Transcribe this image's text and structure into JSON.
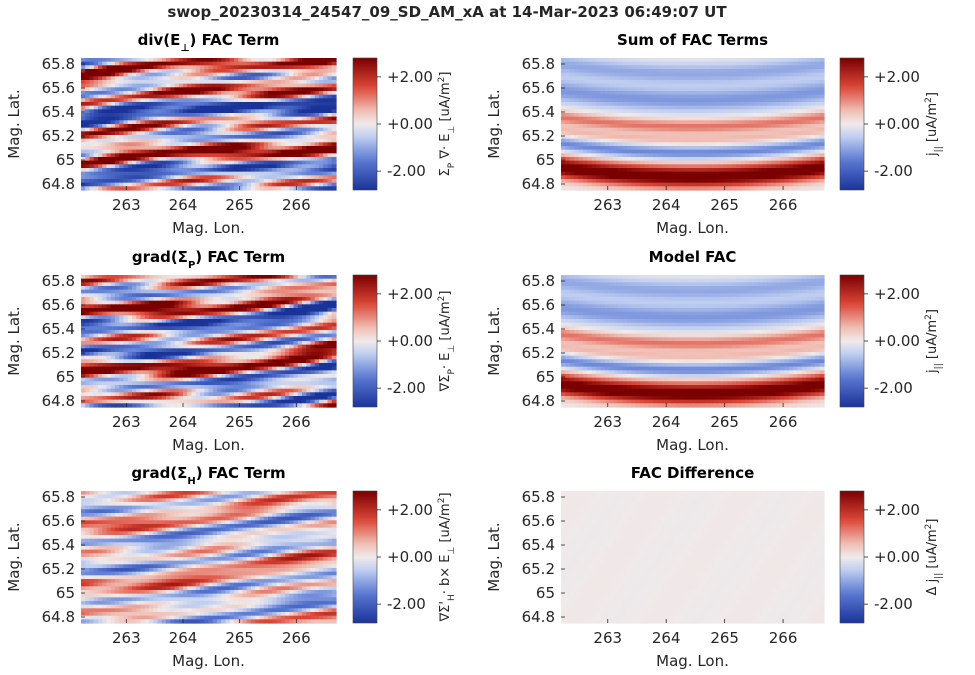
{
  "figure": {
    "title": "swop_20230314_24547_09_SD_AM_xA at 14-Mar-2023 06:49:07 UT"
  },
  "colors": {
    "cmap_low": "#1a3399",
    "cmap_mid": "#f0eaea",
    "cmap_high": "#7a0000"
  },
  "chart_data": [
    {
      "id": "div-e-perp",
      "type": "heatmap",
      "title_main": "div(E",
      "title_sub": "⊥",
      "title_tail": ") FAC Term",
      "xlabel": "Mag. Lon.",
      "ylabel": "Mag. Lat.",
      "cbar_sym": "Σ_P ∇· E_⊥",
      "cbar_units": "[uA/m2]",
      "xlim": [
        262.2,
        266.7
      ],
      "ylim": [
        64.75,
        65.85
      ],
      "xticks": [
        263,
        264,
        265,
        266
      ],
      "xtick_labels": [
        "263",
        "264",
        "265",
        "266"
      ],
      "yticks": [
        65.8,
        65.6,
        65.4,
        65.2,
        65.0,
        64.8
      ],
      "ytick_labels": [
        "65.8",
        "65.6",
        "65.4",
        "65.2",
        "65",
        "64.8"
      ],
      "clim": [
        -2.8,
        2.8
      ],
      "cticks": [
        2,
        0,
        -2
      ],
      "ctick_labels": [
        "+2.00",
        "+0.00",
        "-2.00"
      ],
      "pattern": "stripes-strong"
    },
    {
      "id": "sum-fac",
      "type": "heatmap",
      "title_main": "Sum of FAC Terms",
      "title_sub": "",
      "title_tail": "",
      "xlabel": "Mag. Lon.",
      "ylabel": "Mag. Lat.",
      "cbar_sym": "j_||",
      "cbar_units": "[uA/m2]",
      "xlim": [
        262.2,
        266.7
      ],
      "ylim": [
        64.75,
        65.85
      ],
      "xticks": [
        263,
        264,
        265,
        266
      ],
      "xtick_labels": [
        "263",
        "264",
        "265",
        "266"
      ],
      "yticks": [
        65.8,
        65.6,
        65.4,
        65.2,
        65.0,
        64.8
      ],
      "ytick_labels": [
        "65.8",
        "65.6",
        "65.4",
        "65.2",
        "65",
        "64.8"
      ],
      "clim": [
        -2.8,
        2.8
      ],
      "cticks": [
        2,
        0,
        -2
      ],
      "ctick_labels": [
        "+2.00",
        "+0.00",
        "-2.00"
      ],
      "pattern": "smooth-bands"
    },
    {
      "id": "grad-sigma-p",
      "type": "heatmap",
      "title_main": "grad(Σ",
      "title_sub": "P",
      "title_tail": ") FAC Term",
      "xlabel": "Mag. Lon.",
      "ylabel": "Mag. Lat.",
      "cbar_sym": "∇Σ_P· E_⊥",
      "cbar_units": "[uA/m2]",
      "xlim": [
        262.2,
        266.7
      ],
      "ylim": [
        64.75,
        65.85
      ],
      "xticks": [
        263,
        264,
        265,
        266
      ],
      "xtick_labels": [
        "263",
        "264",
        "265",
        "266"
      ],
      "yticks": [
        65.8,
        65.6,
        65.4,
        65.2,
        65.0,
        64.8
      ],
      "ytick_labels": [
        "65.8",
        "65.6",
        "65.4",
        "65.2",
        "65",
        "64.8"
      ],
      "clim": [
        -2.8,
        2.8
      ],
      "cticks": [
        2,
        0,
        -2
      ],
      "ctick_labels": [
        "+2.00",
        "+0.00",
        "-2.00"
      ],
      "pattern": "stripes-strong-2"
    },
    {
      "id": "model-fac",
      "type": "heatmap",
      "title_main": "Model FAC",
      "title_sub": "",
      "title_tail": "",
      "xlabel": "Mag. Lon.",
      "ylabel": "Mag. Lat.",
      "cbar_sym": "j_||",
      "cbar_units": "[uA/m2]",
      "xlim": [
        262.2,
        266.7
      ],
      "ylim": [
        64.75,
        65.85
      ],
      "xticks": [
        263,
        264,
        265,
        266
      ],
      "xtick_labels": [
        "263",
        "264",
        "265",
        "266"
      ],
      "yticks": [
        65.8,
        65.6,
        65.4,
        65.2,
        65.0,
        64.8
      ],
      "ytick_labels": [
        "65.8",
        "65.6",
        "65.4",
        "65.2",
        "65",
        "64.8"
      ],
      "clim": [
        -2.8,
        2.8
      ],
      "cticks": [
        2,
        0,
        -2
      ],
      "ctick_labels": [
        "+2.00",
        "+0.00",
        "-2.00"
      ],
      "pattern": "smooth-bands"
    },
    {
      "id": "grad-sigma-h",
      "type": "heatmap",
      "title_main": "grad(Σ",
      "title_sub": "H",
      "title_tail": ") FAC Term",
      "xlabel": "Mag. Lon.",
      "ylabel": "Mag. Lat.",
      "cbar_sym": "∇Σ'_H· b× E_⊥",
      "cbar_units": "[uA/m2]",
      "xlim": [
        262.2,
        266.7
      ],
      "ylim": [
        64.75,
        65.85
      ],
      "xticks": [
        263,
        264,
        265,
        266
      ],
      "xtick_labels": [
        "263",
        "264",
        "265",
        "266"
      ],
      "yticks": [
        65.8,
        65.6,
        65.4,
        65.2,
        65.0,
        64.8
      ],
      "ytick_labels": [
        "65.8",
        "65.6",
        "65.4",
        "65.2",
        "65",
        "64.8"
      ],
      "clim": [
        -2.8,
        2.8
      ],
      "cticks": [
        2,
        0,
        -2
      ],
      "ctick_labels": [
        "+2.00",
        "+0.00",
        "-2.00"
      ],
      "pattern": "stripes-weak"
    },
    {
      "id": "fac-diff",
      "type": "heatmap",
      "title_main": "FAC Difference",
      "title_sub": "",
      "title_tail": "",
      "xlabel": "Mag. Lon.",
      "ylabel": "Mag. Lat.",
      "cbar_sym": "Δ j_||",
      "cbar_units": "[uA/m2]",
      "xlim": [
        262.2,
        266.7
      ],
      "ylim": [
        64.75,
        65.85
      ],
      "xticks": [
        263,
        264,
        265,
        266
      ],
      "xtick_labels": [
        "263",
        "264",
        "265",
        "266"
      ],
      "yticks": [
        65.8,
        65.6,
        65.4,
        65.2,
        65.0,
        64.8
      ],
      "ytick_labels": [
        "65.8",
        "65.6",
        "65.4",
        "65.2",
        "65",
        "64.8"
      ],
      "clim": [
        -2.8,
        2.8
      ],
      "cticks": [
        2,
        0,
        -2
      ],
      "ctick_labels": [
        "+2.00",
        "+0.00",
        "-2.00"
      ],
      "pattern": "near-zero"
    }
  ]
}
